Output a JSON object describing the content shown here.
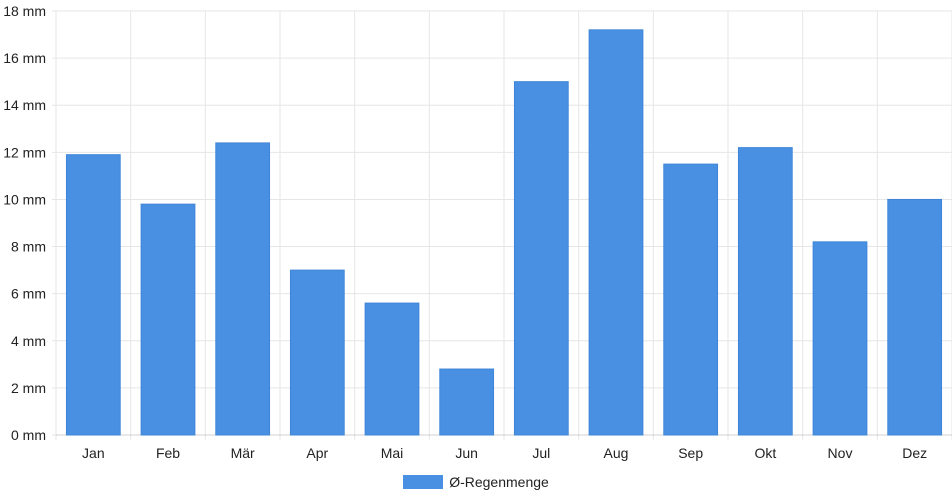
{
  "chart_data": {
    "type": "bar",
    "categories": [
      "Jan",
      "Feb",
      "Mär",
      "Apr",
      "Mai",
      "Jun",
      "Jul",
      "Aug",
      "Sep",
      "Okt",
      "Nov",
      "Dez"
    ],
    "series": [
      {
        "name": "Ø-Regenmenge",
        "values": [
          11.9,
          9.8,
          12.4,
          7.0,
          5.6,
          2.8,
          15.0,
          17.2,
          11.5,
          12.2,
          8.2,
          10.0
        ],
        "color": "#4a90e2"
      }
    ],
    "y_ticks": [
      "0 mm",
      "2 mm",
      "4 mm",
      "6 mm",
      "8 mm",
      "10 mm",
      "12 mm",
      "14 mm",
      "16 mm",
      "18 mm"
    ],
    "ylim": [
      0,
      18
    ],
    "y_step": 2,
    "grid": true,
    "legend_position": "bottom-center"
  }
}
